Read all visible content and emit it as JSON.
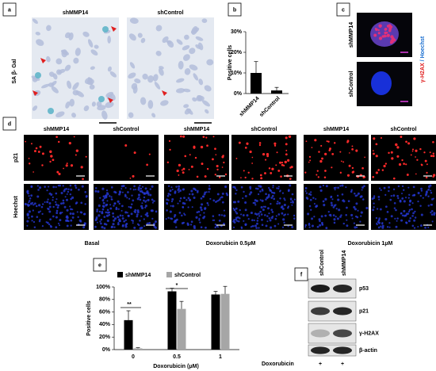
{
  "panels": {
    "a": "a",
    "b": "b",
    "c": "c",
    "d": "d",
    "e": "e",
    "f": "f"
  },
  "panel_a": {
    "columns": [
      "shMMP14",
      "shControl"
    ],
    "stain": "SA β- Gal"
  },
  "panel_c": {
    "rows": [
      "shMMP14",
      "shControl"
    ],
    "red_label": "γ-H2AX",
    "blue_label": "/ Hoechst"
  },
  "panel_d": {
    "columns": [
      "shMMP14",
      "shControl",
      "shMMP14",
      "shControl",
      "shMMP14",
      "shControl"
    ],
    "rows": [
      "p21",
      "Hoechst"
    ],
    "conditions": [
      "Basal",
      "Doxorubicin 0.5μM",
      "Doxorubicin 1μM"
    ]
  },
  "panel_f": {
    "columns": [
      "shControl",
      "shMMP14"
    ],
    "bands": [
      "p53",
      "p21",
      "γ-H2AX",
      "β-actin"
    ],
    "treatment": "Doxorubicin",
    "treatment_marks": [
      "+",
      "+"
    ]
  },
  "chart_data": [
    {
      "type": "bar",
      "ylabel": "Positive cells",
      "categories": [
        "shMMP14",
        "shControl"
      ],
      "values": [
        10,
        1.5
      ],
      "errors": [
        5.5,
        1.5
      ],
      "color": "#000000",
      "ylim": [
        0,
        30
      ],
      "yticks": [
        {
          "value": 0,
          "label": "0%"
        },
        {
          "value": 10,
          "label": "10%"
        },
        {
          "value": 20,
          "label": "20%"
        },
        {
          "value": 30,
          "label": "30%"
        }
      ]
    },
    {
      "type": "grouped_bar",
      "xlabel": "Doxorubicin (μM)",
      "ylabel": "Positive cells",
      "categories": [
        "0",
        "0.5",
        "1"
      ],
      "series": [
        {
          "name": "shMMP14",
          "color": "#000000",
          "values": [
            47,
            93,
            88
          ],
          "errors": [
            15,
            5,
            5
          ]
        },
        {
          "name": "shControl",
          "color": "#a6a6a6",
          "values": [
            2,
            65,
            89
          ],
          "errors": [
            1,
            12,
            12
          ]
        }
      ],
      "annotations": [
        "**",
        "*"
      ],
      "ylim": [
        0,
        100
      ],
      "yticks": [
        {
          "value": 0,
          "label": "0%"
        },
        {
          "value": 20,
          "label": "20%"
        },
        {
          "value": 40,
          "label": "40%"
        },
        {
          "value": 60,
          "label": "60%"
        },
        {
          "value": 80,
          "label": "80%"
        },
        {
          "value": 100,
          "label": "100%"
        }
      ]
    }
  ]
}
